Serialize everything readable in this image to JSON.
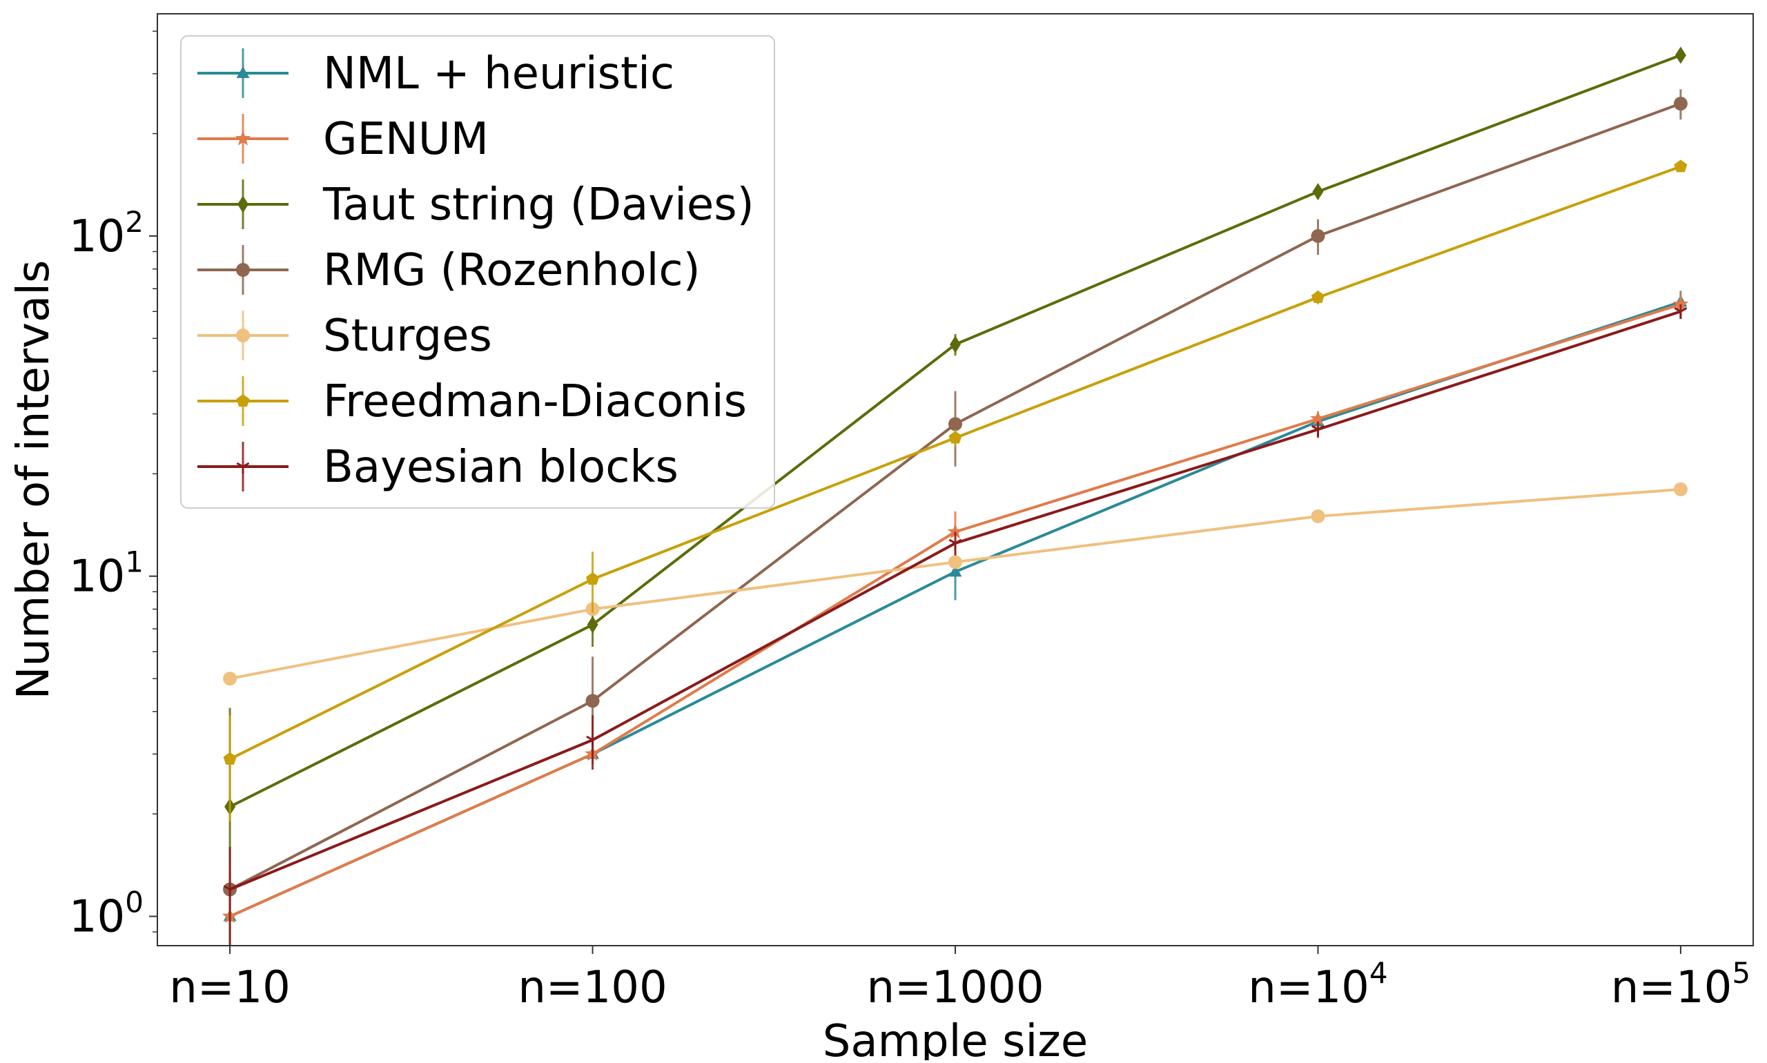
{
  "chart_data": {
    "type": "line",
    "title": "",
    "xlabel": "Sample size",
    "ylabel": "Number of intervals",
    "yscale": "log",
    "ylim": [
      0.82,
      450
    ],
    "grid": false,
    "legend_position": "top-left",
    "x": [
      1,
      2,
      3,
      4,
      5
    ],
    "xlim": [
      0.8,
      5.2
    ],
    "x_tick_labels": [
      {
        "base": "n=10",
        "exp": ""
      },
      {
        "base": "n=100",
        "exp": ""
      },
      {
        "base": "n=1000",
        "exp": ""
      },
      {
        "base": "n=10",
        "exp": "4"
      },
      {
        "base": "n=10",
        "exp": "5"
      }
    ],
    "y_ticks": [
      {
        "value": 1,
        "base": "10",
        "exp": "0"
      },
      {
        "value": 10,
        "base": "10",
        "exp": "1"
      },
      {
        "value": 100,
        "base": "10",
        "exp": "2"
      }
    ],
    "series": [
      {
        "name": "NML + heuristic",
        "color": "#2a8a99",
        "marker": "triangle",
        "values": [
          1.0,
          3.0,
          10.3,
          28.5,
          64.0
        ],
        "errors": [
          0.0,
          0.0,
          1.8,
          1.5,
          5.0
        ]
      },
      {
        "name": "GENUM",
        "color": "#e07b4a",
        "marker": "star",
        "values": [
          1.0,
          3.0,
          13.5,
          29.0,
          63.0
        ],
        "errors": [
          0.0,
          0.0,
          2.0,
          1.5,
          5.0
        ]
      },
      {
        "name": "Taut string (Davies)",
        "color": "#5e6b0a",
        "marker": "diamond",
        "values": [
          2.1,
          7.2,
          48.0,
          135.0,
          340.0
        ],
        "errors": [
          2.0,
          1.0,
          3.5,
          6.0,
          15.0
        ]
      },
      {
        "name": "RMG (Rozenholc)",
        "color": "#8f6650",
        "marker": "circle",
        "values": [
          1.2,
          4.3,
          28.0,
          100.0,
          245.0
        ],
        "errors": [
          0.15,
          1.5,
          7.0,
          12.0,
          25.0
        ]
      },
      {
        "name": "Sturges",
        "color": "#f0c07e",
        "marker": "circle",
        "values": [
          5.0,
          8.0,
          11.0,
          15.0,
          18.0
        ],
        "errors": [
          0.0,
          0.0,
          0.0,
          0.0,
          0.0
        ]
      },
      {
        "name": "Freedman-Diaconis",
        "color": "#c8a00a",
        "marker": "pentagon",
        "values": [
          2.9,
          9.8,
          25.5,
          66.0,
          160.0
        ],
        "errors": [
          1.0,
          2.0,
          1.5,
          3.0,
          6.0
        ]
      },
      {
        "name": "Bayesian blocks",
        "color": "#8b1a1a",
        "marker": "tri_down",
        "values": [
          1.2,
          3.3,
          12.5,
          27.0,
          60.0
        ],
        "errors": [
          0.4,
          0.6,
          1.0,
          1.5,
          3.0
        ]
      }
    ]
  }
}
